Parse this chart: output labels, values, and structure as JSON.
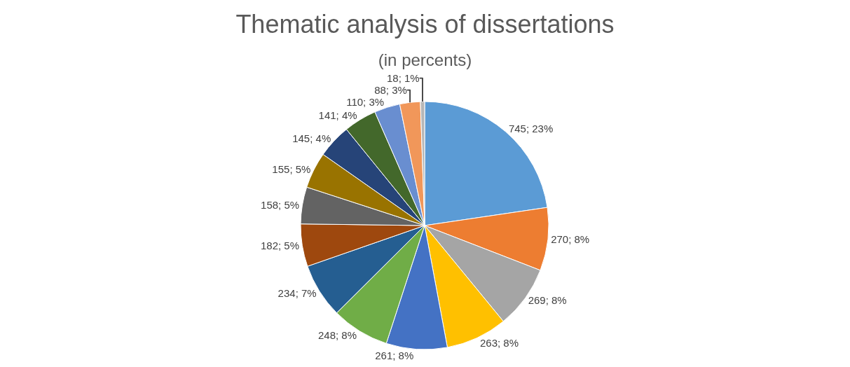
{
  "chart_data": {
    "type": "pie",
    "title": "Thematic analysis of dissertations",
    "subtitle": "(in percents)",
    "categories": [
      null,
      null,
      null,
      null,
      null,
      null,
      null,
      null,
      null,
      null,
      null,
      null,
      null,
      null,
      null
    ],
    "values": [
      745,
      270,
      269,
      263,
      261,
      248,
      234,
      182,
      158,
      155,
      145,
      141,
      110,
      88,
      18
    ],
    "value_labels": [
      "745; 23%",
      "270; 8%",
      "269; 8%",
      "263; 8%",
      "261; 8%",
      "248; 8%",
      "234; 7%",
      "182; 5%",
      "158; 5%",
      "155; 5%",
      "145; 4%",
      "141; 4%",
      "110; 3%",
      "88; 3%",
      "18; 1%"
    ],
    "colors": [
      "#5b9bd5",
      "#ed7d31",
      "#a5a5a5",
      "#ffc000",
      "#4472c4",
      "#70ad47",
      "#255e91",
      "#9e480e",
      "#636363",
      "#997300",
      "#264478",
      "#43682b",
      "#698ed0",
      "#f1975a",
      "#b7b7b7"
    ],
    "legend": false
  }
}
